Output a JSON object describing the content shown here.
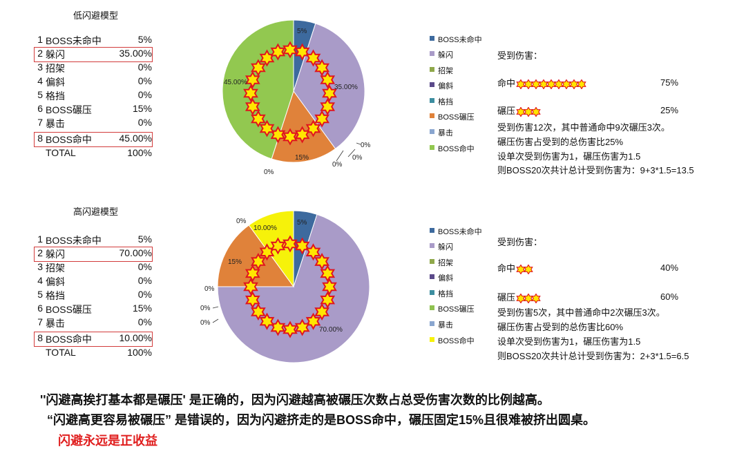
{
  "chart_data": [
    {
      "type": "pie",
      "title": "低闪避模型",
      "categories": [
        "BOSS未命中",
        "躲闪",
        "招架",
        "偏斜",
        "格挡",
        "BOSS碾压",
        "暴击",
        "BOSS命中"
      ],
      "values": [
        5,
        35,
        0,
        0,
        0,
        15,
        0,
        45
      ],
      "table_values": [
        "5%",
        "35.00%",
        "0%",
        "0%",
        "0%",
        "15%",
        "0%",
        "45.00%"
      ],
      "data_labels": [
        "5%",
        "35.00%",
        "0%",
        "0%",
        "0%",
        "15%",
        "0%",
        "45.00%"
      ],
      "total_label": "TOTAL",
      "total_value": "100%",
      "highlighted_rows": [
        2,
        8
      ],
      "legend_position": "right"
    },
    {
      "type": "pie",
      "title": "高闪避模型",
      "categories": [
        "BOSS未命中",
        "躲闪",
        "招架",
        "偏斜",
        "格挡",
        "BOSS碾压",
        "暴击",
        "BOSS命中"
      ],
      "values": [
        5,
        70,
        0,
        0,
        0,
        15,
        0,
        10
      ],
      "table_values": [
        "5%",
        "70.00%",
        "0%",
        "0%",
        "0%",
        "15%",
        "0%",
        "10.00%"
      ],
      "data_labels": [
        "5%",
        "70.00%",
        "0%",
        "0%",
        "0%",
        "15%",
        "0%",
        "10.00%"
      ],
      "total_label": "TOTAL",
      "total_value": "100%",
      "highlighted_rows": [
        2,
        8
      ],
      "legend_position": "right"
    }
  ],
  "colors": {
    "boss_miss": "#3d6a9e",
    "dodge": "#a99bc8",
    "parry": "#8fa84a",
    "deflect": "#5b4a8a",
    "block": "#3d8ea0",
    "crush": "#e0823a",
    "crit": "#8aa6cf",
    "boss_hit_low": "#92c850",
    "boss_hit_high": "#f6f20a",
    "crush_legend_high": "#8fc250",
    "star_fill": "#ffe600",
    "star_stroke": "#e0141e",
    "highlight_box": "#d23a3a",
    "emphasis_text": "#e01e1e"
  },
  "legends": {
    "low": [
      "BOSS未命中",
      "躲闪",
      "招架",
      "偏斜",
      "格挡",
      "BOSS碾压",
      "暴击",
      "BOSS命中"
    ],
    "high": [
      "BOSS未命中",
      "躲闪",
      "招架",
      "偏斜",
      "格挡",
      "BOSS碾压",
      "暴击",
      "BOSS命中"
    ]
  },
  "info_low": {
    "heading": "受到伤害：",
    "hit_label": "命中",
    "hit_stars": 9,
    "hit_pct": "75%",
    "crush_label": "碾压",
    "crush_stars": 3,
    "crush_pct": "25%",
    "line1": "受到伤害12次，其中普通命中9次碾压3次。",
    "line2": "碾压伤害占受到的总伤害比25%",
    "line3": "设单次受到伤害为1，碾压伤害为1.5",
    "line4": "则BOSS20次共计总计受到伤害为：9+3*1.5=13.5"
  },
  "info_high": {
    "heading": "受到伤害：",
    "hit_label": "命中",
    "hit_stars": 2,
    "hit_pct": "40%",
    "crush_label": "碾压",
    "crush_stars": 3,
    "crush_pct": "60%",
    "line1": "受到伤害5次，其中普通命中2次碾压3次。",
    "line2": "碾压伤害占受到的总伤害比60%",
    "line3": "设单次受到伤害为1，碾压伤害为1.5",
    "line4": "则BOSS20次共计总计受到伤害为：2+3*1.5=6.5"
  },
  "conclusion": {
    "line1": "''闪避高挨打基本都是碾压' 是正确的，因为闪避越高被碾压次数占总受伤害次数的比例越高。",
    "line2": "“闪避高更容易被碾压” 是错误的，因为闪避挤走的是BOSS命中，碾压固定15%且很难被挤出圆桌。",
    "line3": "闪避永远是正收益"
  },
  "icons": {
    "star": "star-icon"
  }
}
